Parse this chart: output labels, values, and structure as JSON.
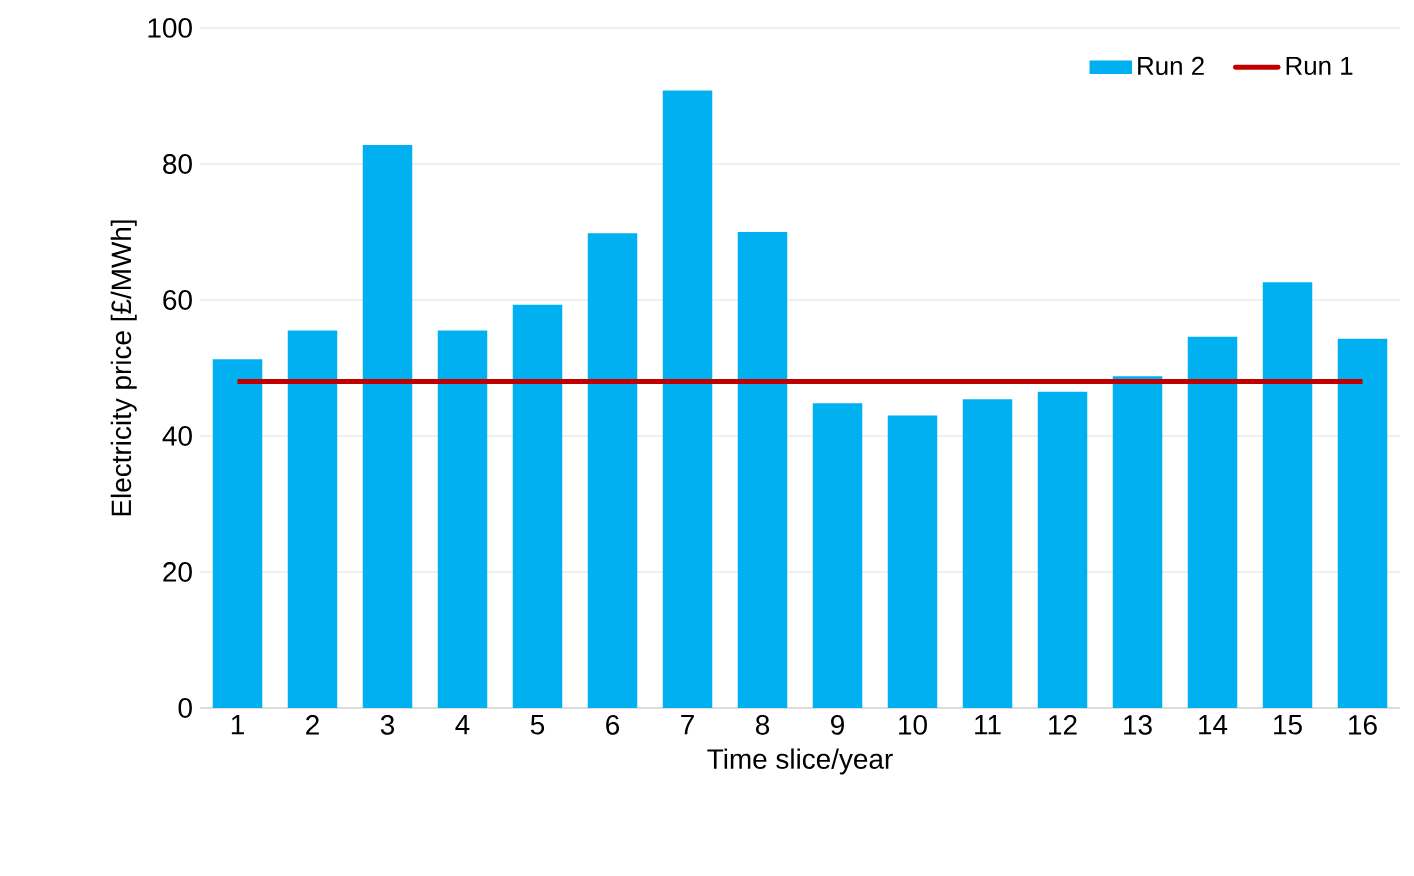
{
  "chart_data": {
    "type": "bar",
    "xlabel": "Time slice/year",
    "ylabel": "Electricity price [£/MWh]",
    "categories": [
      "1",
      "2",
      "3",
      "4",
      "5",
      "6",
      "7",
      "8",
      "9",
      "10",
      "11",
      "12",
      "13",
      "14",
      "15",
      "16"
    ],
    "series": [
      {
        "name": "Run 2",
        "color": "#00b0f0",
        "values": [
          51.3,
          55.5,
          82.8,
          55.5,
          59.3,
          69.8,
          90.8,
          70.0,
          44.8,
          43.0,
          45.4,
          46.5,
          48.8,
          54.6,
          62.6,
          54.3
        ]
      },
      {
        "name": "Run 1",
        "type": "line",
        "color": "#c00000",
        "values": [
          48,
          48,
          48,
          48,
          48,
          48,
          48,
          48,
          48,
          48,
          48,
          48,
          48,
          48,
          48,
          48
        ]
      }
    ],
    "ylim": [
      0,
      100
    ],
    "yticks": [
      0,
      20,
      40,
      60,
      80,
      100
    ],
    "grid": "y",
    "legend": "top right",
    "marker": "none"
  }
}
